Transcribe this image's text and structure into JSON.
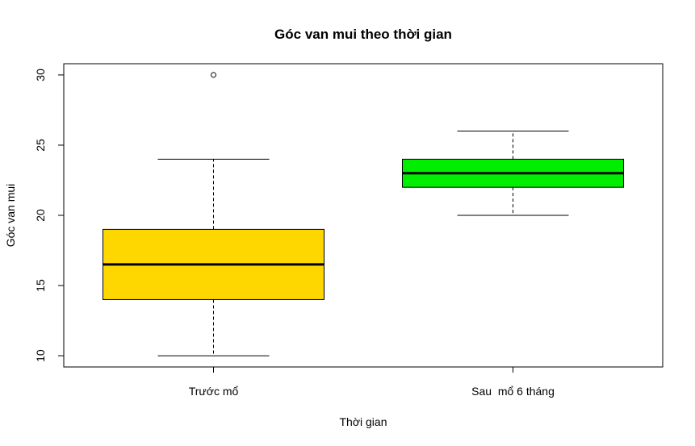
{
  "chart_data": {
    "type": "boxplot",
    "title": "Góc van mui theo thời gian",
    "xlabel": "Thời gian",
    "ylabel": "Góc van mui",
    "ylim": [
      9.2,
      30.8
    ],
    "yticks": [
      10,
      15,
      20,
      25,
      30
    ],
    "grid": false,
    "legend": "none",
    "categories": [
      "Trước mổ",
      "Sau  mổ 6 tháng"
    ],
    "boxes": [
      {
        "category": "Trước mổ",
        "min": 10,
        "q1": 14,
        "median": 16.5,
        "q3": 19,
        "max": 24,
        "outliers": [
          30
        ],
        "color": "#FFD700"
      },
      {
        "category": "Sau  mổ 6 tháng",
        "min": 20,
        "q1": 22,
        "median": 23,
        "q3": 24,
        "max": 26,
        "outliers": [],
        "color": "#00EE00"
      }
    ]
  }
}
